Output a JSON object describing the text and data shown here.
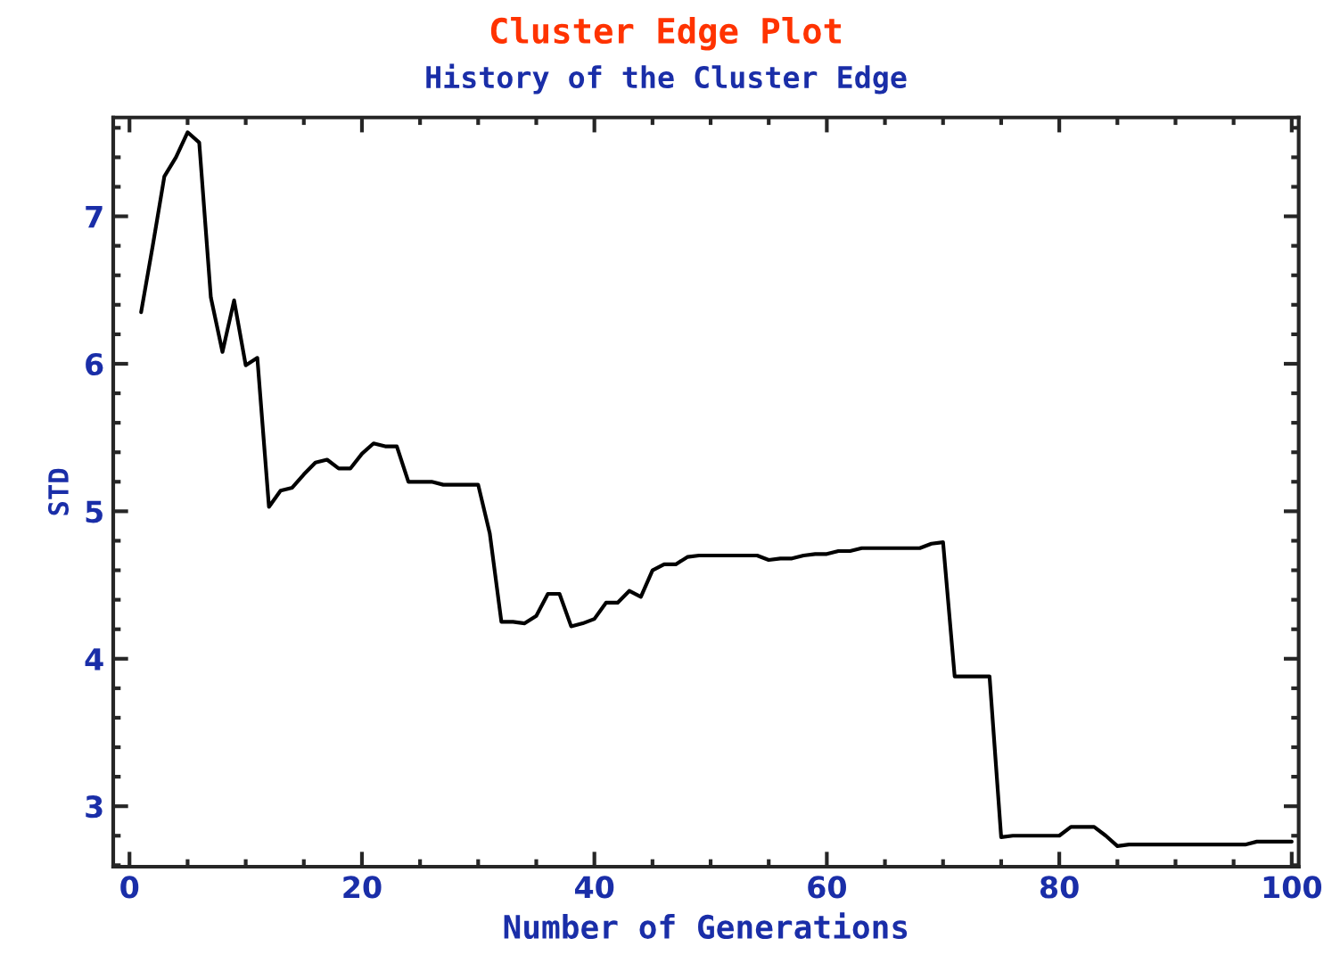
{
  "chart_data": {
    "type": "line",
    "title": "Cluster Edge Plot",
    "subtitle": "History of the Cluster Edge",
    "xlabel": "Number of Generations",
    "ylabel": "STD",
    "x": [
      1,
      2,
      3,
      4,
      5,
      6,
      7,
      8,
      9,
      10,
      11,
      12,
      13,
      14,
      15,
      16,
      17,
      18,
      19,
      20,
      21,
      22,
      23,
      24,
      25,
      26,
      27,
      28,
      29,
      30,
      31,
      32,
      33,
      34,
      35,
      36,
      37,
      38,
      39,
      40,
      41,
      42,
      43,
      44,
      45,
      46,
      47,
      48,
      49,
      50,
      51,
      52,
      53,
      54,
      55,
      56,
      57,
      58,
      59,
      60,
      61,
      62,
      63,
      64,
      65,
      66,
      67,
      68,
      69,
      70,
      71,
      72,
      73,
      74,
      75,
      76,
      77,
      78,
      79,
      80,
      81,
      82,
      83,
      84,
      85,
      86,
      87,
      88,
      89,
      90,
      91,
      92,
      93,
      94,
      95,
      96,
      97,
      98,
      99,
      100
    ],
    "series": [
      {
        "color": "#000000",
        "values": [
          6.35,
          6.8,
          7.27,
          7.4,
          7.57,
          7.5,
          6.45,
          6.08,
          6.43,
          5.99,
          6.04,
          5.03,
          5.14,
          5.16,
          5.25,
          5.33,
          5.35,
          5.29,
          5.29,
          5.39,
          5.46,
          5.44,
          5.44,
          5.2,
          5.2,
          5.2,
          5.18,
          5.18,
          5.18,
          5.18,
          4.85,
          4.25,
          4.25,
          4.24,
          4.29,
          4.44,
          4.44,
          4.22,
          4.24,
          4.27,
          4.38,
          4.38,
          4.46,
          4.42,
          4.6,
          4.64,
          4.64,
          4.69,
          4.7,
          4.7,
          4.7,
          4.7,
          4.7,
          4.7,
          4.67,
          4.68,
          4.68,
          4.7,
          4.71,
          4.71,
          4.73,
          4.73,
          4.75,
          4.75,
          4.75,
          4.75,
          4.75,
          4.75,
          4.78,
          4.79,
          3.88,
          3.88,
          3.88,
          3.88,
          2.79,
          2.8,
          2.8,
          2.8,
          2.8,
          2.8,
          2.86,
          2.86,
          2.86,
          2.8,
          2.73,
          2.74,
          2.74,
          2.74,
          2.74,
          2.74,
          2.74,
          2.74,
          2.74,
          2.74,
          2.74,
          2.74,
          2.76,
          2.76,
          2.76,
          2.76
        ]
      }
    ],
    "xlim": [
      -1.4,
      100.6
    ],
    "ylim": [
      2.59,
      7.67
    ],
    "xticks": [
      0,
      20,
      40,
      60,
      80,
      100
    ],
    "yticks": [
      3,
      4,
      5,
      6,
      7
    ],
    "grid": false,
    "marker": "none",
    "line_style": "solid"
  }
}
